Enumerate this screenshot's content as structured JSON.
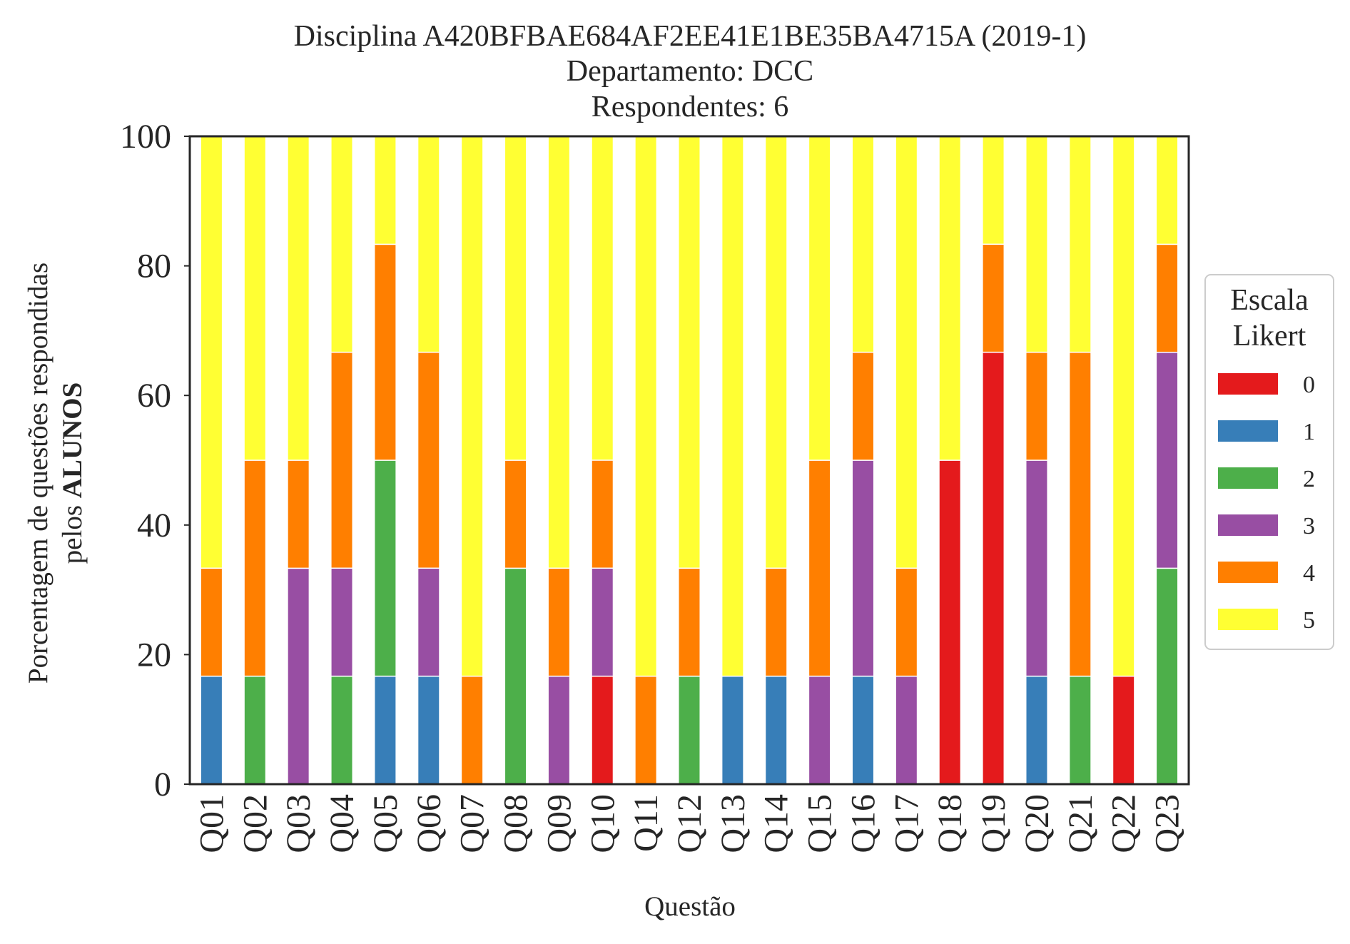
{
  "chart_data": {
    "type": "bar",
    "stacked": true,
    "title_lines": [
      "Disciplina A420BFBAE684AF2EE41E1BE35BA4715A (2019-1)",
      "Departamento: DCC",
      "Respondentes: 6"
    ],
    "xlabel": "Questão",
    "ylabel_line1": "Porcentagem de questões respondidas",
    "ylabel_line2_prefix": "pelos ",
    "ylabel_line2_bold": "ALUNOS",
    "ylim": [
      0,
      100
    ],
    "yticks": [
      "0",
      "20",
      "40",
      "60",
      "80",
      "100"
    ],
    "legend_title_lines": [
      "Escala",
      "Likert"
    ],
    "legend_position": "center-right",
    "grid": false,
    "categories": [
      "Q01",
      "Q02",
      "Q03",
      "Q04",
      "Q05",
      "Q06",
      "Q07",
      "Q08",
      "Q09",
      "Q10",
      "Q11",
      "Q12",
      "Q13",
      "Q14",
      "Q15",
      "Q16",
      "Q17",
      "Q18",
      "Q19",
      "Q20",
      "Q21",
      "Q22",
      "Q23"
    ],
    "series": [
      {
        "name": "0",
        "color": "#e41a1c",
        "values": [
          0,
          0,
          0,
          0,
          0,
          0,
          0,
          0,
          0,
          16.67,
          0,
          0,
          0,
          0,
          0,
          0,
          0,
          50,
          66.67,
          0,
          0,
          16.67,
          0
        ]
      },
      {
        "name": "1",
        "color": "#377eb8",
        "values": [
          16.67,
          0,
          0,
          0,
          16.67,
          16.67,
          0,
          0,
          0,
          0,
          0,
          0,
          16.67,
          16.67,
          0,
          16.67,
          0,
          0,
          0,
          16.67,
          0,
          0,
          0
        ]
      },
      {
        "name": "2",
        "color": "#4daf4a",
        "values": [
          0,
          16.67,
          0,
          16.67,
          33.33,
          0,
          0,
          33.33,
          0,
          0,
          0,
          16.67,
          0,
          0,
          0,
          0,
          0,
          0,
          0,
          0,
          16.67,
          0,
          33.33
        ]
      },
      {
        "name": "3",
        "color": "#984ea3",
        "values": [
          0,
          0,
          33.33,
          16.67,
          0,
          16.67,
          0,
          0,
          16.67,
          16.67,
          0,
          0,
          0,
          0,
          16.67,
          33.33,
          16.67,
          0,
          0,
          33.33,
          0,
          0,
          33.33
        ]
      },
      {
        "name": "4",
        "color": "#ff7f00",
        "values": [
          16.67,
          33.33,
          16.67,
          33.33,
          33.33,
          33.33,
          16.67,
          16.67,
          16.67,
          16.67,
          16.67,
          16.67,
          0,
          16.67,
          33.33,
          16.67,
          16.67,
          0,
          16.67,
          16.67,
          50,
          0,
          16.67
        ]
      },
      {
        "name": "5",
        "color": "#ffff33",
        "values": [
          66.67,
          50,
          50,
          33.33,
          16.67,
          33.33,
          83.33,
          50,
          66.67,
          50,
          83.33,
          66.67,
          83.33,
          66.67,
          50,
          33.33,
          66.67,
          50,
          16.67,
          33.33,
          33.33,
          83.33,
          16.67
        ]
      }
    ]
  }
}
